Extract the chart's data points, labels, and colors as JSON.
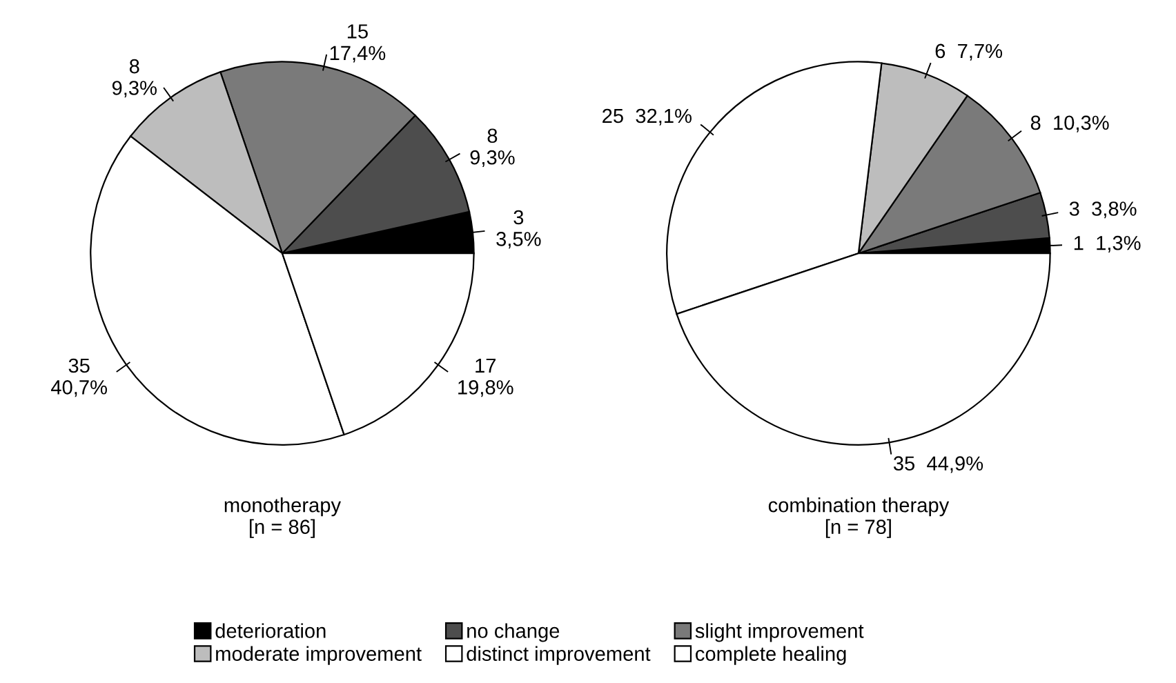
{
  "chart_data": [
    {
      "type": "pie",
      "title": "monotherapy\n[n = 86]",
      "categories": [
        "deterioration",
        "no change",
        "slight improvement",
        "moderate improvement",
        "distinct improvement",
        "complete healing"
      ],
      "values": [
        3,
        8,
        15,
        8,
        35,
        17
      ],
      "colors": [
        "#000000",
        "#4d4d4d",
        "#7a7a7a",
        "#bdbdbd",
        "#ffffff",
        "#ffffff"
      ],
      "value_labels": [
        "3\n3,5%",
        "8\n9,3%",
        "15\n17,4%",
        "8\n9,3%",
        "35\n40,7%",
        "17\n19,8%"
      ],
      "legend": "bottom"
    },
    {
      "type": "pie",
      "title": "combination therapy\n[n = 78]",
      "categories": [
        null,
        null,
        null,
        null,
        null,
        null
      ],
      "values": [
        1,
        3,
        8,
        6,
        25,
        35
      ],
      "colors": [
        "#000000",
        "#4d4d4d",
        "#7a7a7a",
        "#bdbdbd",
        "#ffffff",
        "#ffffff"
      ],
      "value_labels": [
        "1  1,3%",
        "3  3,8%",
        "8  10,3%",
        "6  7,7%",
        "25  32,1%",
        "35  44,9%"
      ]
    }
  ]
}
